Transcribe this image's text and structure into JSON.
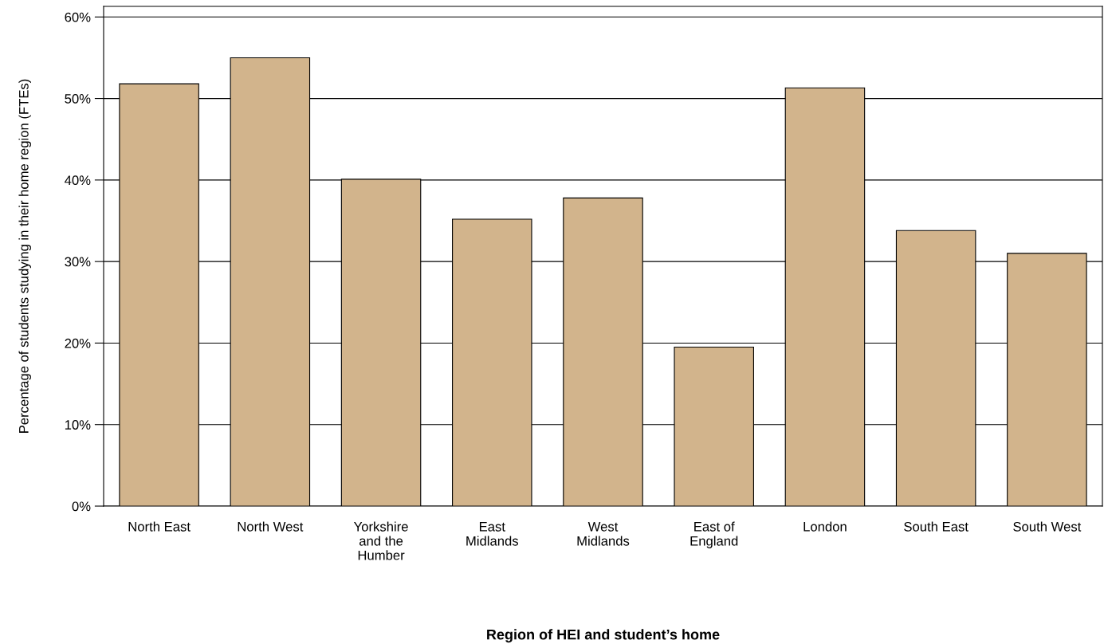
{
  "chart_data": {
    "type": "bar",
    "xlabel": "Region of HEI and student’s home",
    "ylabel": "Percentage of students studying in their home region (FTEs)",
    "categories": [
      "North East",
      "North West",
      "Yorkshire\nand the\nHumber",
      "East\nMidlands",
      "West\nMidlands",
      "East of\nEngland",
      "London",
      "South East",
      "South West"
    ],
    "values": [
      51.8,
      55.0,
      40.1,
      35.2,
      37.8,
      19.5,
      51.3,
      33.8,
      31.0
    ],
    "color": "#d2b48c",
    "ylim": [
      0,
      61.3
    ],
    "yticks": [
      {
        "value": 0,
        "label": "0%"
      },
      {
        "value": 10,
        "label": "10%"
      },
      {
        "value": 20,
        "label": "20%"
      },
      {
        "value": 30,
        "label": "30%"
      },
      {
        "value": 40,
        "label": "40%"
      },
      {
        "value": 50,
        "label": "50%"
      },
      {
        "value": 60,
        "label": "60%"
      }
    ],
    "grid": "y",
    "legend": false
  }
}
